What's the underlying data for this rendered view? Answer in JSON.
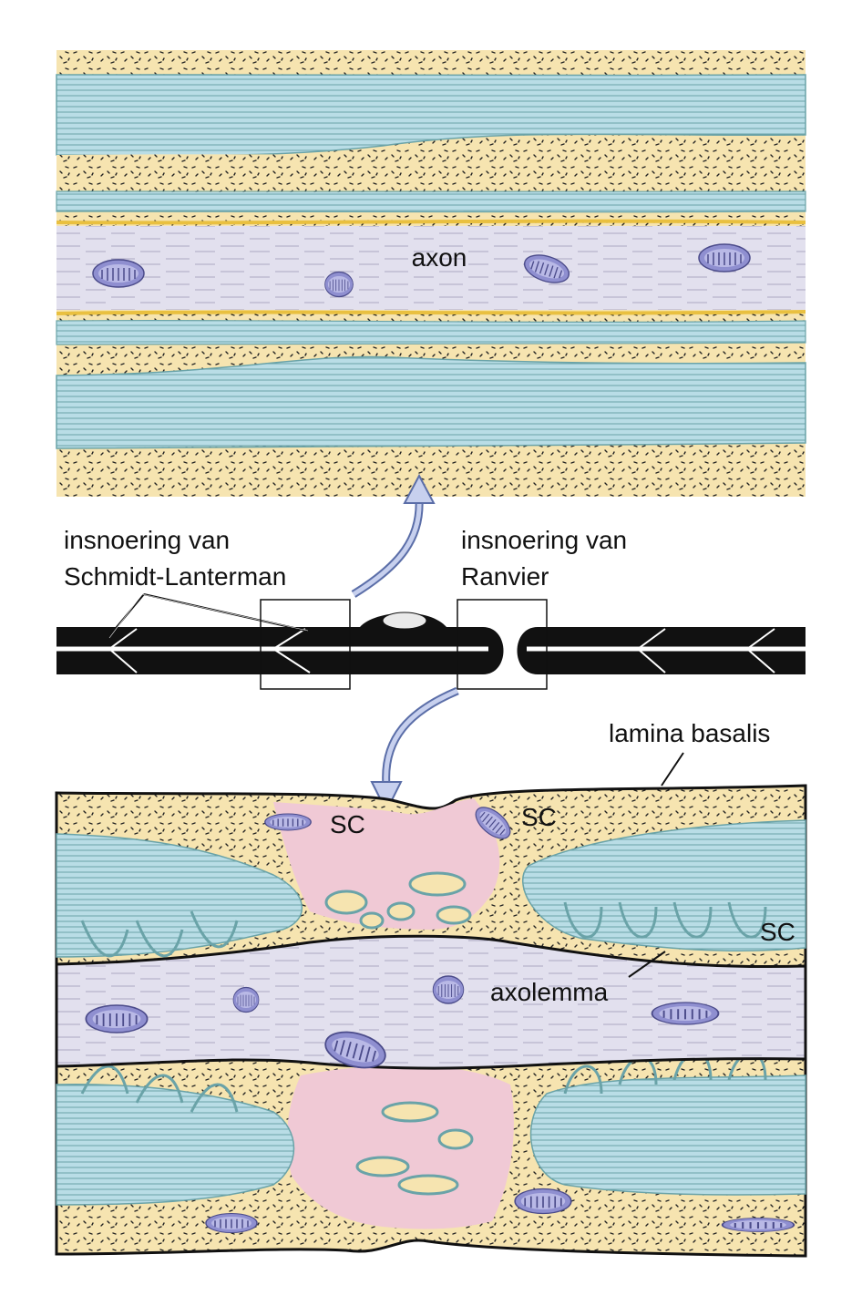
{
  "labels": {
    "axon": "axon",
    "schmidt_line1": "insnoering van",
    "schmidt_line2": "Schmidt-Lanterman",
    "ranvier_line1": "insnoering van",
    "ranvier_line2": "Ranvier",
    "lamina_basalis": "lamina basalis",
    "sc": "SC",
    "axolemma": "axolemma"
  },
  "colors": {
    "myelin_blue": "#b9dde6",
    "myelin_line": "#6aa3a8",
    "cytoplasm_yellow": "#f6e4b0",
    "axon_lavender": "#e2e0ee",
    "mitochondria": "#8f8fd0",
    "node_pink": "#f0c9d5",
    "outline": "#111111"
  },
  "icons": {
    "arrow_up": "curved-arrow-up-icon",
    "arrow_down": "curved-arrow-down-icon"
  }
}
